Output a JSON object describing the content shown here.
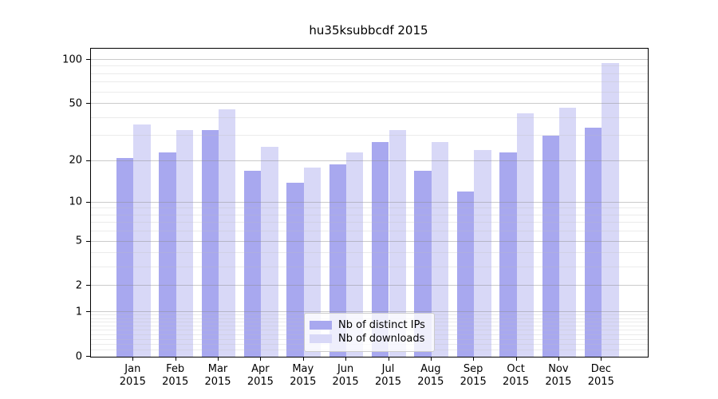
{
  "title": "hu35ksubbcdf 2015",
  "chart_data": {
    "type": "bar",
    "title": "hu35ksubbcdf 2015",
    "categories": [
      "Jan 2015",
      "Feb 2015",
      "Mar 2015",
      "Apr 2015",
      "May 2015",
      "Jun 2015",
      "Jul 2015",
      "Aug 2015",
      "Sep 2015",
      "Oct 2015",
      "Nov 2015",
      "Dec 2015"
    ],
    "x_tick_months": [
      "Jan",
      "Feb",
      "Mar",
      "Apr",
      "May",
      "Jun",
      "Jul",
      "Aug",
      "Sep",
      "Oct",
      "Nov",
      "Dec"
    ],
    "x_tick_year": "2015",
    "series": [
      {
        "name": "Nb of distinct IPs",
        "color": "#a8a8ef",
        "values": [
          21,
          23,
          33,
          17,
          14,
          19,
          27,
          17,
          12,
          23,
          30,
          34
        ]
      },
      {
        "name": "Nb of downloads",
        "color": "#d8d8f7",
        "values": [
          36,
          33,
          46,
          25,
          18,
          23,
          33,
          27,
          24,
          43,
          47,
          95
        ]
      }
    ],
    "y_scale": "log1p",
    "ylim": [
      0,
      119
    ],
    "y_ticks": [
      0,
      1,
      2,
      5,
      10,
      20,
      50,
      100
    ],
    "y_minor_ticks": [
      0.1,
      0.2,
      0.3,
      0.4,
      0.5,
      0.6,
      0.7,
      0.8,
      0.9,
      3,
      4,
      6,
      7,
      8,
      9,
      30,
      40,
      60,
      70,
      80,
      90
    ],
    "grid": true,
    "legend_position": "lower center"
  },
  "colors": {
    "bar_distinct_ips": "#a8a8ef",
    "bar_downloads": "#d8d8f7",
    "axis": "#000000",
    "grid_major": "#8c8c8c",
    "grid_minor": "#bebebe",
    "legend_border": "#cccccc"
  }
}
